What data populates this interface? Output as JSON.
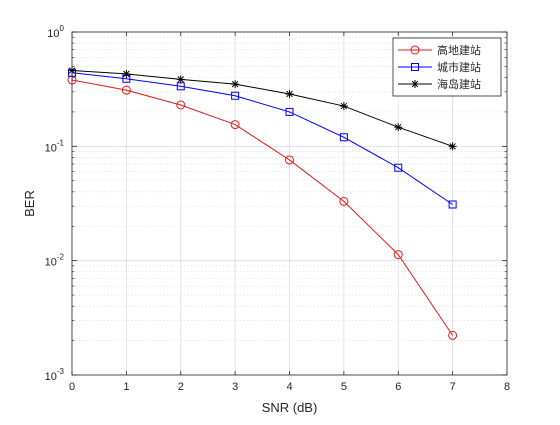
{
  "chart_data": {
    "type": "line",
    "xlabel": "SNR (dB)",
    "ylabel": "BER",
    "x_scale": "linear",
    "y_scale": "log",
    "xlim": [
      0,
      8
    ],
    "ylim": [
      0.001,
      1
    ],
    "x_ticks": [
      "0",
      "1",
      "2",
      "3",
      "4",
      "5",
      "6",
      "7",
      "8"
    ],
    "y_ticks": [
      {
        "base": "10",
        "exp": "0"
      },
      {
        "base": "10",
        "exp": "-1"
      },
      {
        "base": "10",
        "exp": "-2"
      },
      {
        "base": "10",
        "exp": "-3"
      }
    ],
    "grid": true,
    "minor_grid": true,
    "legend_position": "top-right",
    "x": [
      0,
      1,
      2,
      3,
      4,
      5,
      6,
      7
    ],
    "series": [
      {
        "name": "高地建站",
        "color": "#e41a1c",
        "marker": "circle",
        "values": [
          0.38,
          0.31,
          0.23,
          0.155,
          0.076,
          0.033,
          0.0113,
          0.00222
        ]
      },
      {
        "name": "城市建站",
        "color": "#0000ff",
        "marker": "square",
        "values": [
          0.44,
          0.39,
          0.335,
          0.277,
          0.2,
          0.12,
          0.065,
          0.031
        ]
      },
      {
        "name": "海岛建站",
        "color": "#000000",
        "marker": "asterisk",
        "values": [
          0.46,
          0.43,
          0.385,
          0.35,
          0.287,
          0.225,
          0.147,
          0.1
        ]
      }
    ]
  }
}
